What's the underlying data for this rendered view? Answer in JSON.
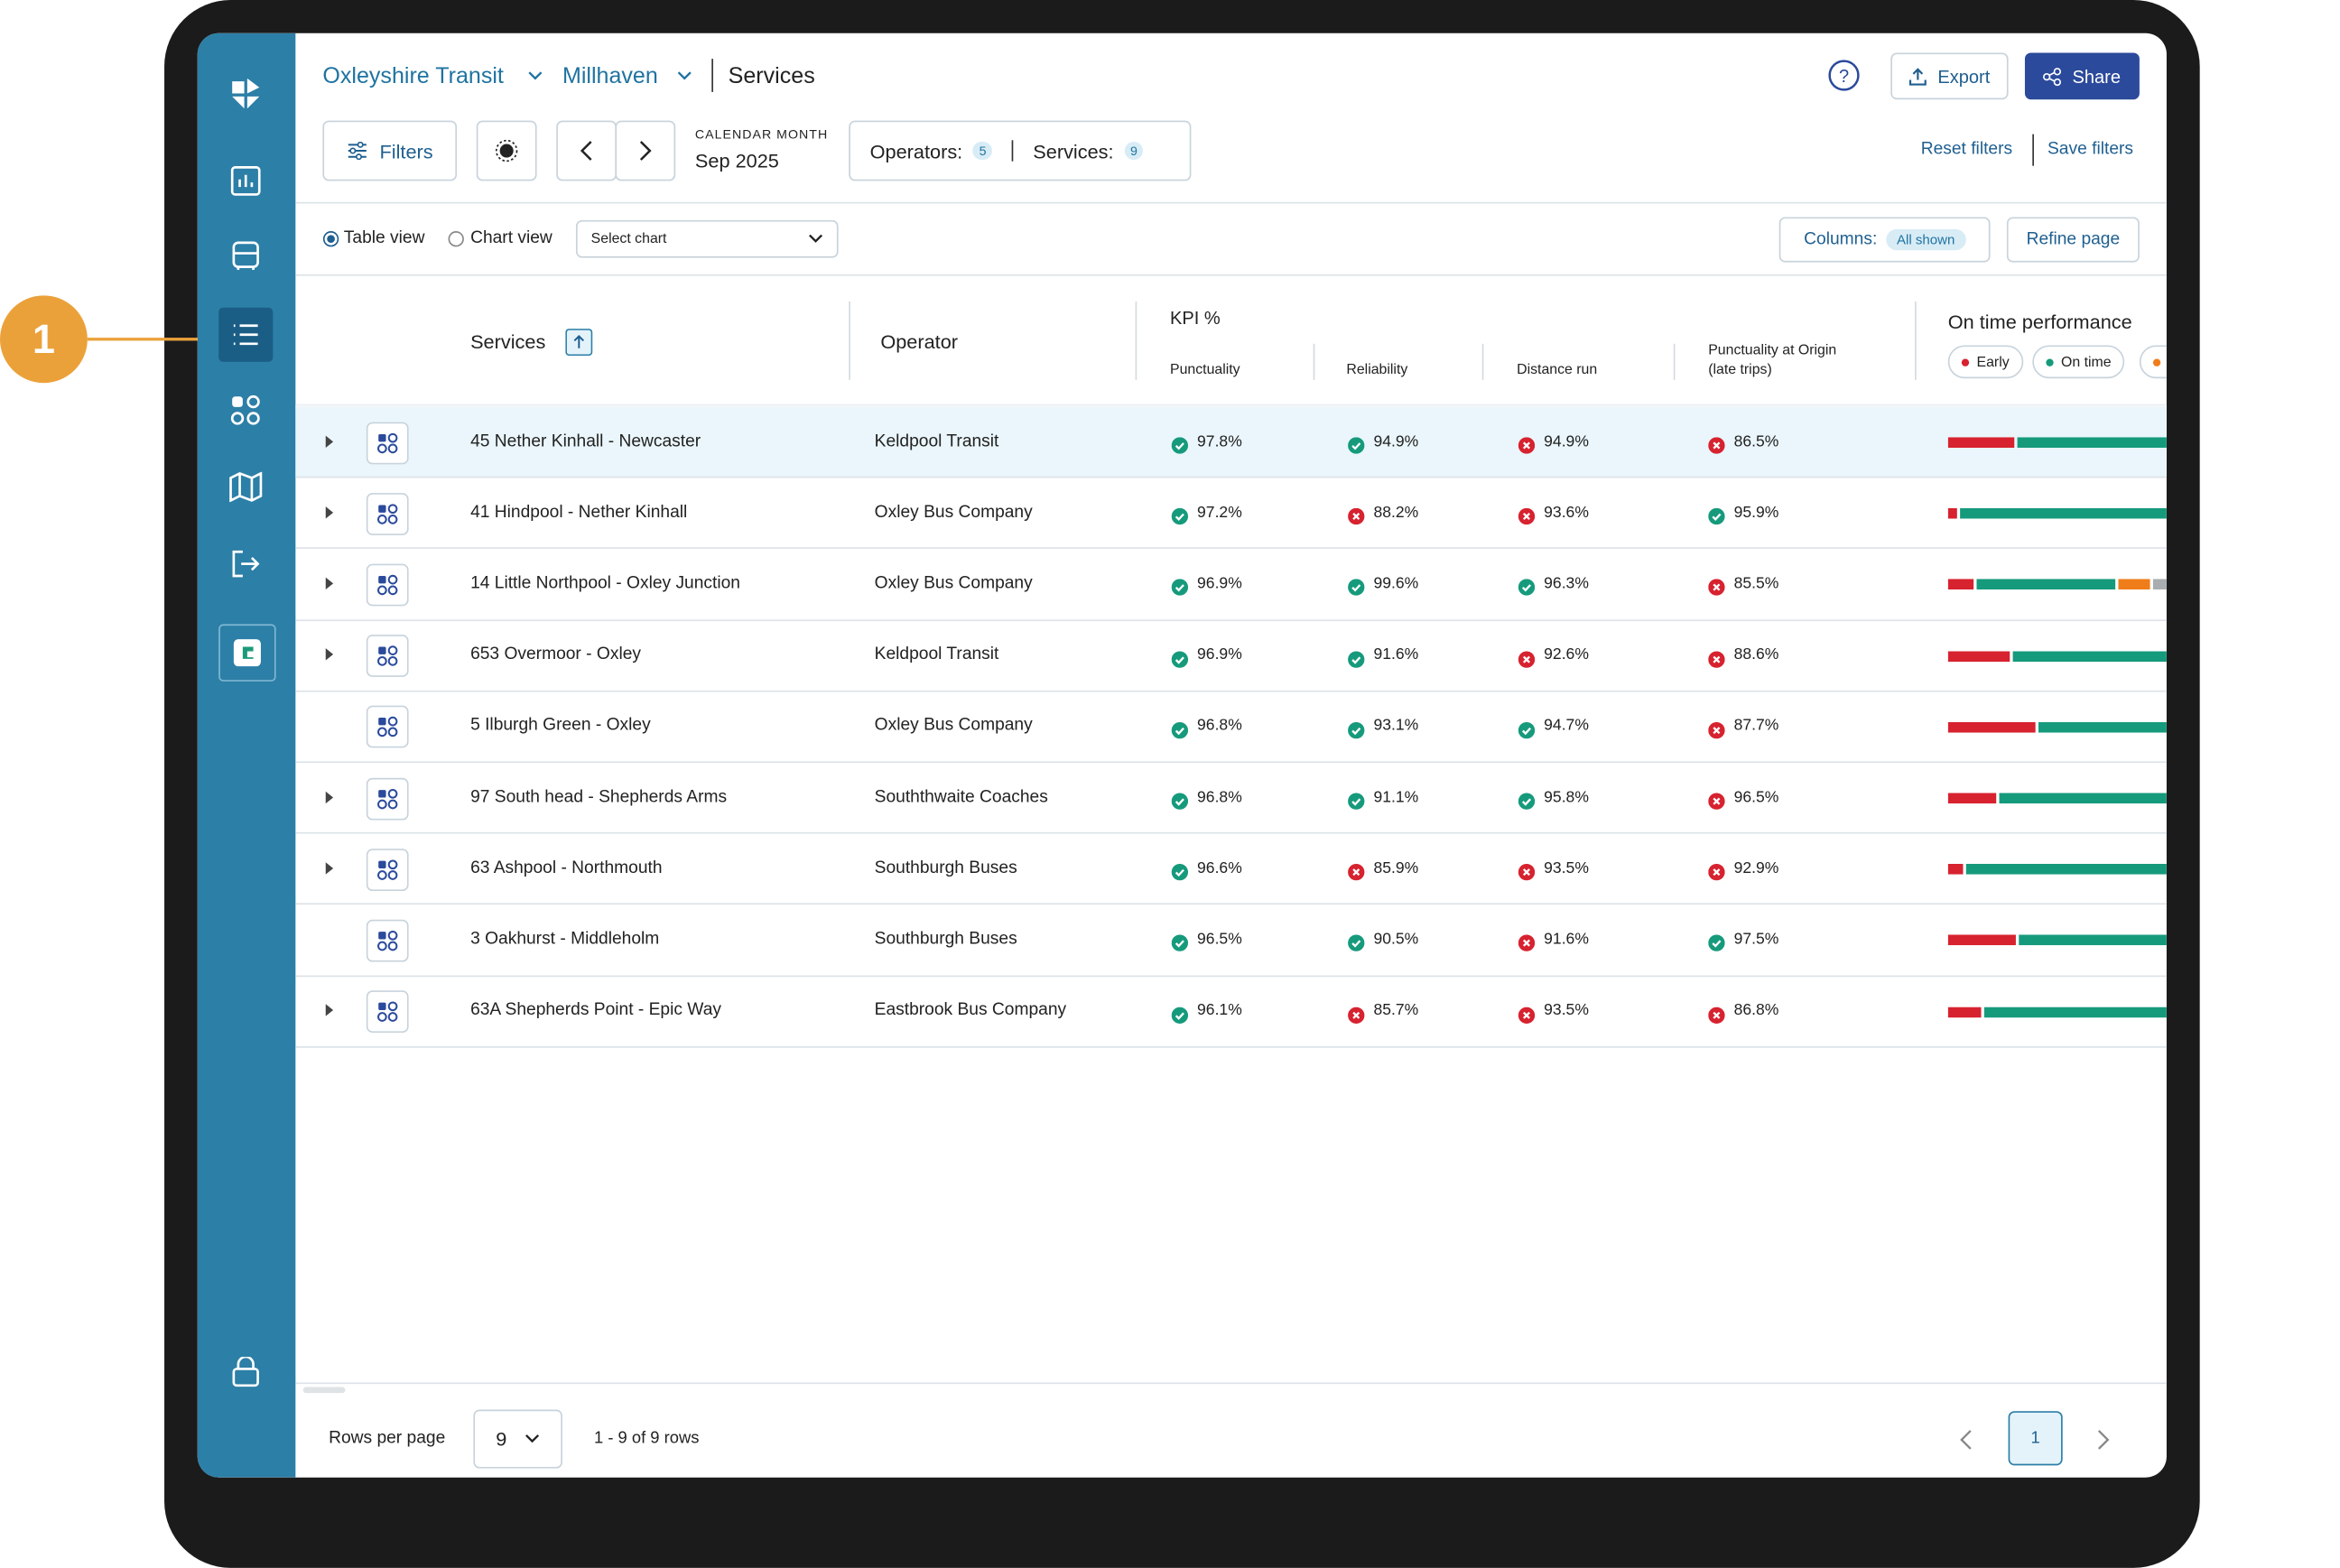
{
  "annotation": "1",
  "header": {
    "org": "Oxleyshire Transit",
    "area": "Millhaven",
    "page": "Services",
    "export": "Export",
    "share": "Share"
  },
  "filterbar": {
    "filters": "Filters",
    "period_label": "CALENDAR MONTH",
    "period": "Sep 2025",
    "operators": "Operators:",
    "operators_count": "5",
    "services": "Services:",
    "services_count": "9",
    "reset": "Reset filters",
    "save": "Save filters"
  },
  "toolbar": {
    "table_view": "Table view",
    "chart_view": "Chart view",
    "select_chart": "Select chart",
    "columns": "Columns:",
    "columns_state": "All shown",
    "refine": "Refine page"
  },
  "table": {
    "columns": {
      "service": "Services",
      "operator": "Operator",
      "kpi": "KPI %",
      "punctuality": "Punctuality",
      "reliability": "Reliability",
      "distance": "Distance run",
      "origin": "Punctuality at Origin (late trips)",
      "otp": "On time performance"
    },
    "legend": [
      "Early",
      "On time"
    ],
    "rows": [
      {
        "service": "45 Nether Kinhall - Newcaster",
        "operator": "Keldpool Transit",
        "kpis": [
          "97.8%",
          "94.9%",
          "94.9%",
          "86.5%"
        ],
        "status": [
          "pass",
          "pass",
          "fail",
          "fail"
        ],
        "expandable": true,
        "otp": [
          30,
          70,
          0,
          0
        ]
      },
      {
        "service": "41 Hindpool - Nether Kinhall",
        "operator": "Oxley Bus Company",
        "kpis": [
          "97.2%",
          "88.2%",
          "93.6%",
          "95.9%"
        ],
        "status": [
          "pass",
          "fail",
          "fail",
          "pass"
        ],
        "expandable": true,
        "otp": [
          4,
          96,
          0,
          0
        ]
      },
      {
        "service": "14 Little Northpool - Oxley Junction",
        "operator": "Oxley Bus Company",
        "kpis": [
          "96.9%",
          "99.6%",
          "96.3%",
          "85.5%"
        ],
        "status": [
          "pass",
          "pass",
          "pass",
          "fail"
        ],
        "expandable": true,
        "otp": [
          12,
          63,
          15,
          10
        ]
      },
      {
        "service": "653 Overmoor - Oxley",
        "operator": "Keldpool Transit",
        "kpis": [
          "96.9%",
          "91.6%",
          "92.6%",
          "88.6%"
        ],
        "status": [
          "pass",
          "pass",
          "fail",
          "fail"
        ],
        "expandable": true,
        "otp": [
          28,
          72,
          0,
          0
        ]
      },
      {
        "service": "5 Ilburgh Green - Oxley",
        "operator": "Oxley Bus Company",
        "kpis": [
          "96.8%",
          "93.1%",
          "94.7%",
          "87.7%"
        ],
        "status": [
          "pass",
          "pass",
          "pass",
          "fail"
        ],
        "expandable": false,
        "otp": [
          40,
          60,
          0,
          0
        ]
      },
      {
        "service": "97 South head - Shepherds Arms",
        "operator": "Souththwaite Coaches",
        "kpis": [
          "96.8%",
          "91.1%",
          "95.8%",
          "96.5%"
        ],
        "status": [
          "pass",
          "pass",
          "pass",
          "fail"
        ],
        "expandable": true,
        "otp": [
          22,
          78,
          0,
          0
        ]
      },
      {
        "service": "63 Ashpool - Northmouth",
        "operator": "Southburgh Buses",
        "kpis": [
          "96.6%",
          "85.9%",
          "93.5%",
          "92.9%"
        ],
        "status": [
          "pass",
          "fail",
          "fail",
          "fail"
        ],
        "expandable": true,
        "otp": [
          7,
          93,
          0,
          0
        ]
      },
      {
        "service": "3 Oakhurst - Middleholm",
        "operator": "Southburgh Buses",
        "kpis": [
          "96.5%",
          "90.5%",
          "91.6%",
          "97.5%"
        ],
        "status": [
          "pass",
          "pass",
          "fail",
          "pass"
        ],
        "expandable": false,
        "otp": [
          31,
          69,
          0,
          0
        ]
      },
      {
        "service": "63A Shepherds Point - Epic Way",
        "operator": "Eastbrook Bus Company",
        "kpis": [
          "96.1%",
          "85.7%",
          "93.5%",
          "86.8%"
        ],
        "status": [
          "pass",
          "fail",
          "fail",
          "fail"
        ],
        "expandable": true,
        "otp": [
          15,
          85,
          0,
          0
        ]
      }
    ]
  },
  "footer": {
    "rows_per_page": "Rows per page",
    "page_size": "9",
    "range": "1 - 9 of 9 rows",
    "page": "1"
  }
}
